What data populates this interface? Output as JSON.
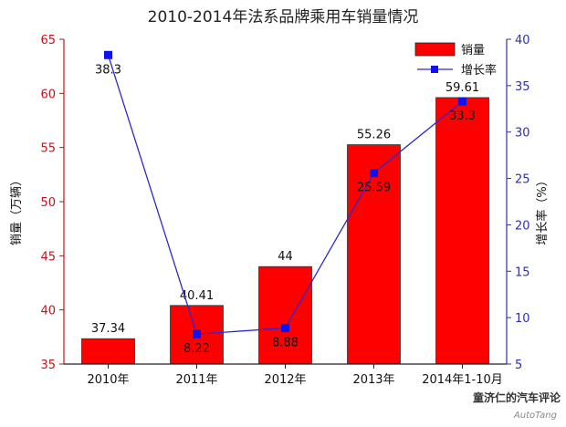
{
  "chart_data": {
    "type": "bar",
    "title": "2010-2014年法系品牌乘用车销量情况",
    "categories": [
      "2010年",
      "2011年",
      "2012年",
      "2013年",
      "2014年1-10月"
    ],
    "series": [
      {
        "name": "销量",
        "type": "bar",
        "axis": "left",
        "color": "#ff0000",
        "values": [
          37.34,
          40.41,
          44,
          55.26,
          59.61
        ],
        "labels": [
          "37.34",
          "40.41",
          "44",
          "55.26",
          "59.61"
        ]
      },
      {
        "name": "增长率",
        "type": "line",
        "axis": "right",
        "color": "#2a2ad0",
        "values": [
          38.3,
          8.22,
          8.88,
          25.59,
          33.3
        ],
        "labels": [
          "38.3",
          "8.22",
          "8.88",
          "25.59",
          "33.3"
        ]
      }
    ],
    "ylabel_left": "销量（万辆）",
    "ylabel_right": "增长率（%）",
    "ylim_left": [
      35,
      65
    ],
    "yticks_left": [
      35,
      40,
      45,
      50,
      55,
      60,
      65
    ],
    "ylim_right": [
      5,
      40
    ],
    "yticks_right": [
      5,
      10,
      15,
      20,
      25,
      30,
      35,
      40
    ],
    "grid": false,
    "legend_position": "top-right",
    "left_axis_color": "#c0141c",
    "right_axis_color": "#2f2fb0"
  },
  "watermark": {
    "line1": "童济仁的汽车评论",
    "line2": "AutoTang"
  }
}
